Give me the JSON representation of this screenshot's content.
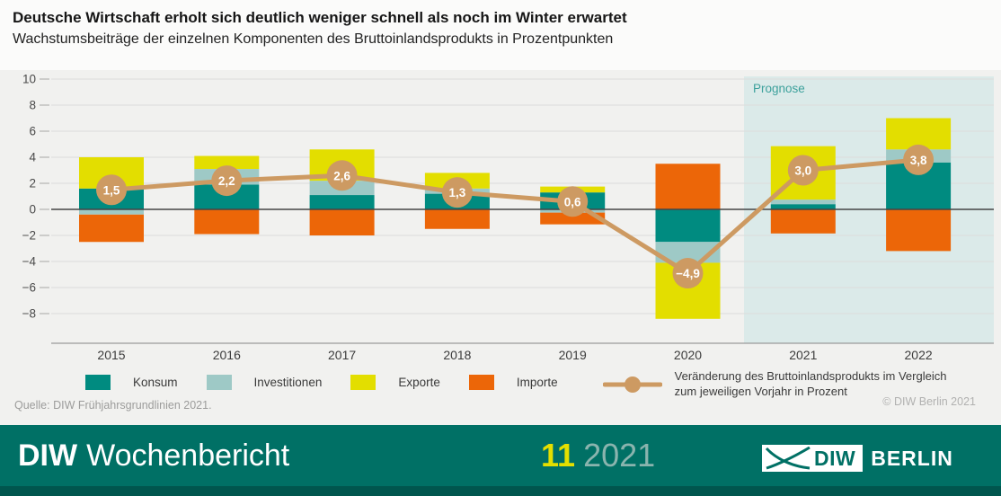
{
  "header": {
    "title": "Deutsche Wirtschaft erholt sich deutlich weniger schnell als noch im Winter erwartet",
    "subtitle": "Wachstumsbeiträge der einzelnen Komponenten des Bruttoinlandsprodukts in Prozentpunkten"
  },
  "chart_data": {
    "type": "bar",
    "stacked": true,
    "categories": [
      "2015",
      "2016",
      "2017",
      "2018",
      "2019",
      "2020",
      "2021",
      "2022"
    ],
    "series": [
      {
        "name": "Konsum",
        "color": "#008b80",
        "values": [
          1.6,
          1.9,
          1.1,
          1.2,
          1.3,
          -2.5,
          0.4,
          3.6
        ]
      },
      {
        "name": "Investitionen",
        "color": "#9ec9c6",
        "values": [
          -0.4,
          1.2,
          1.1,
          0.4,
          -0.25,
          -1.6,
          0.35,
          1.0
        ]
      },
      {
        "name": "Exporte",
        "color": "#e3de00",
        "values": [
          2.4,
          1.0,
          2.4,
          1.2,
          0.45,
          -4.3,
          4.1,
          2.4
        ]
      },
      {
        "name": "Importe",
        "color": "#ec6608",
        "values": [
          -2.1,
          -1.9,
          -2.0,
          -1.5,
          -0.9,
          3.5,
          -1.85,
          -3.2
        ]
      }
    ],
    "line": {
      "name": "Veränderung des Bruttoinlandsprodukts im Vergleich zum jeweiligen Vorjahr in Prozent",
      "color": "#cd9a62",
      "values": [
        1.5,
        2.2,
        2.6,
        1.3,
        0.6,
        -4.9,
        3.0,
        3.8
      ],
      "labels": [
        "1,5",
        "2,2",
        "2,6",
        "1,3",
        "0,6",
        "−4,9",
        "3,0",
        "3,8"
      ]
    },
    "yticks": [
      10,
      8,
      6,
      4,
      2,
      0,
      -2,
      -4,
      -6,
      -8
    ],
    "ylim": [
      -10.3,
      10.2
    ],
    "grid": true,
    "legend_position": "bottom",
    "prognose": {
      "label": "Prognose",
      "from": "2021",
      "bg": "#dbeae9",
      "label_color": "#3da19c"
    }
  },
  "legend": {
    "line_text_1": "Veränderung des Bruttoinlandsprodukts im Vergleich",
    "line_text_2": "zum jeweiligen Vorjahr in Prozent"
  },
  "source": "Quelle: DIW Frühjahrsgrundlinien 2021.",
  "copyright": "© DIW Berlin 2021",
  "footer": {
    "brand_bold": "DIW",
    "brand_regular": "Wochenbericht",
    "issue": "11",
    "year": "2021",
    "logo_diw": "DIW",
    "logo_berlin": "BERLIN"
  }
}
